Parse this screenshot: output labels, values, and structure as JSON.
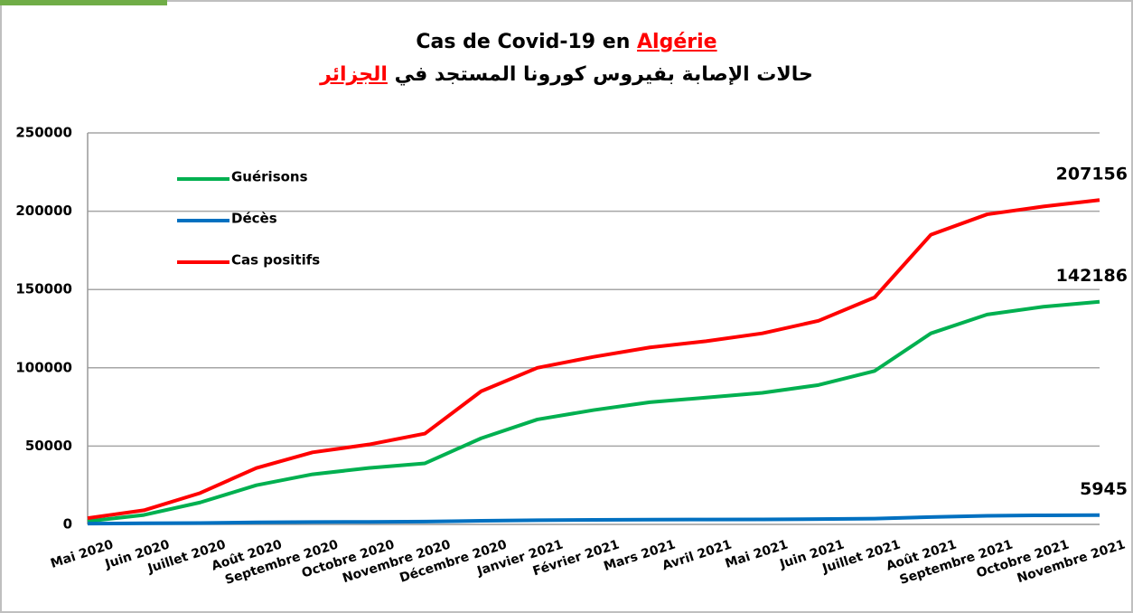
{
  "chart_data": {
    "type": "line",
    "title": "Cas de Covid-19 en",
    "title_highlight": "Algérie",
    "subtitle": "حالات الإصابة بفيروس كورونا المستجد في",
    "subtitle_highlight": "الجزائر",
    "categories": [
      "Mai 2020",
      "Juin 2020",
      "Juillet 2020",
      "Août 2020",
      "Septembre 2020",
      "Octobre 2020",
      "Novembre 2020",
      "Décembre 2020",
      "Janvier 2021",
      "Février 2021",
      "Mars 2021",
      "Avril 2021",
      "Mai 2021",
      "Juin 2021",
      "Juillet 2021",
      "Août 2021",
      "Septembre 2021",
      "Octobre 2021",
      "Novembre 2021"
    ],
    "series": [
      {
        "name": "Guérisons",
        "color": "#00b050",
        "values": [
          2000,
          6000,
          14000,
          25000,
          32000,
          36000,
          39000,
          55000,
          67000,
          73000,
          78000,
          81000,
          84000,
          89000,
          98000,
          122000,
          134000,
          139000,
          142186
        ]
      },
      {
        "name": "Décès",
        "color": "#0070c0",
        "values": [
          500,
          700,
          900,
          1300,
          1500,
          1600,
          1800,
          2300,
          2700,
          2900,
          3000,
          3100,
          3200,
          3400,
          3700,
          4700,
          5500,
          5800,
          5945
        ]
      },
      {
        "name": "Cas positifs",
        "color": "#ff0000",
        "values": [
          4000,
          9000,
          20000,
          36000,
          46000,
          51000,
          58000,
          85000,
          100000,
          107000,
          113000,
          117000,
          122000,
          130000,
          145000,
          185000,
          198000,
          203000,
          207156
        ]
      }
    ],
    "ylim": [
      0,
      250000
    ],
    "yticks": [
      0,
      50000,
      100000,
      150000,
      200000,
      250000
    ],
    "grid": true
  }
}
